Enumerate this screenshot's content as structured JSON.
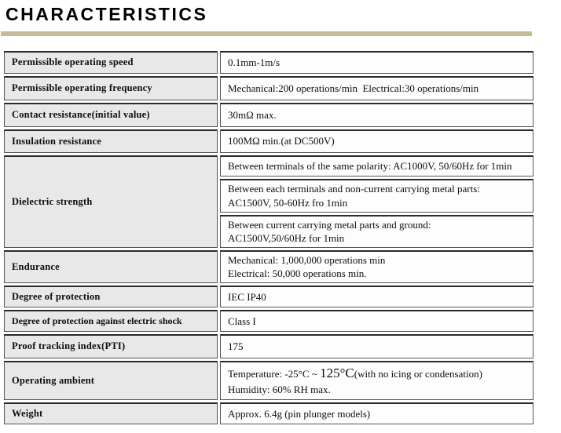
{
  "header": {
    "title": "CHARACTERISTICS"
  },
  "colors": {
    "accent_bar": "#c4bc96",
    "label_cell_bg": "#e8e8e8",
    "cell_border": "#555555"
  },
  "table": {
    "rows": [
      {
        "label": "Permissible operating speed",
        "value": "0.1mm-1m/s"
      },
      {
        "label": "Permissible operating frequency",
        "value": "Mechanical:200 operations/min  Electrical:30 operations/min"
      },
      {
        "label": "Contact resistance(initial value)",
        "value": "30mΩ max."
      },
      {
        "label": "Insulation resistance",
        "value": "100MΩ min.(at DC500V)"
      },
      {
        "label": "Dielectric strength",
        "sub_rows": [
          {
            "line1": "Between terminals of the same polarity: AC1000V, 50/60Hz for 1min"
          },
          {
            "line1": "Between each terminals and non-current carrying metal parts:",
            "line2": "AC1500V, 50-60Hz fro 1min"
          },
          {
            "line1": "Between current carrying metal parts and ground:",
            "line2": "AC1500V,50/60Hz for 1min"
          }
        ]
      },
      {
        "label": "Endurance",
        "line1": "Mechanical: 1,000,000 operations min",
        "line2": "Electrical: 50,000 operations min."
      },
      {
        "label": "Degree of protection",
        "value": "IEC IP40"
      },
      {
        "label": "Degree of protection against electric shock",
        "value": "Class I"
      },
      {
        "label": "Proof tracking index(PTI)",
        "value": "175"
      },
      {
        "label": "Operating ambient",
        "temp_prefix": "Temperature: -25°C ~ ",
        "temp_big": "125°C",
        "temp_suffix": "(with no icing or condensation)",
        "line2": "Humidity: 60% RH max."
      },
      {
        "label": "Weight",
        "value": "Approx. 6.4g (pin plunger models)"
      }
    ]
  }
}
